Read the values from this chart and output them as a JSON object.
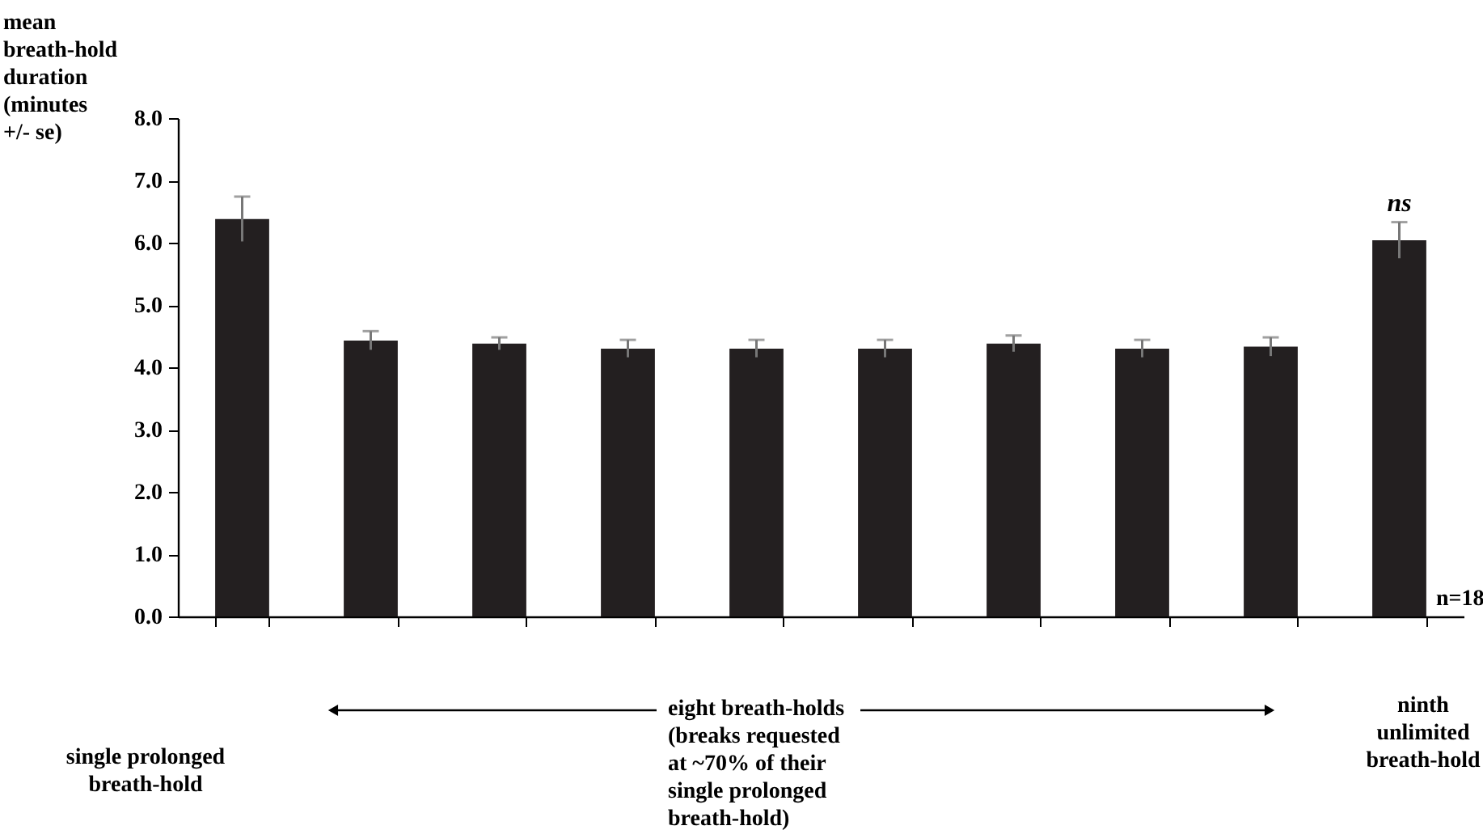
{
  "chart_data": {
    "type": "bar",
    "ylabel": "mean breath-hold duration (minutes +/- se)",
    "categories": [
      null,
      null,
      null,
      null,
      null,
      null,
      null,
      null,
      null,
      null
    ],
    "values": [
      6.38,
      4.43,
      4.38,
      4.3,
      4.3,
      4.3,
      4.38,
      4.3,
      4.33,
      6.04
    ],
    "errors": [
      0.36,
      0.15,
      0.1,
      0.14,
      0.14,
      0.14,
      0.13,
      0.14,
      0.15,
      0.29
    ],
    "color": "#231f20",
    "ylim": [
      0,
      8
    ],
    "yticks": [
      {
        "value": 0,
        "label": "0.0"
      },
      {
        "value": 1,
        "label": "1.0"
      },
      {
        "value": 2,
        "label": "2.0"
      },
      {
        "value": 3,
        "label": "3.0"
      },
      {
        "value": 4,
        "label": "4.0"
      },
      {
        "value": 5,
        "label": "5.0"
      },
      {
        "value": 6,
        "label": "6.0"
      },
      {
        "value": 7,
        "label": "7.0"
      },
      {
        "value": 8,
        "label": "8.0"
      }
    ],
    "grid": false,
    "tick_labels": "y",
    "annotations": [
      "ns",
      "n=18",
      "single prolonged breath-hold",
      "eight breath-holds (breaks requested at ~70% of their single prolonged breath-hold)",
      "ninth unlimited breath-hold"
    ]
  }
}
